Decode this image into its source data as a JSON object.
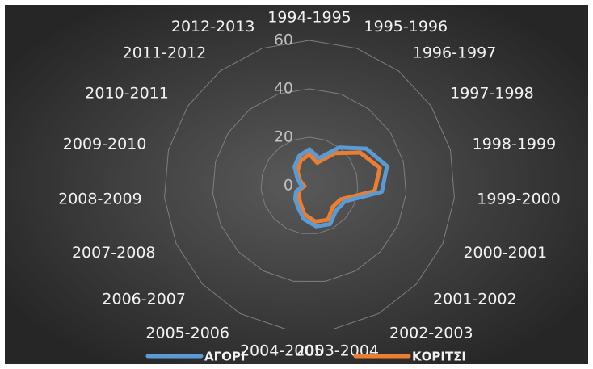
{
  "chart_data": {
    "type": "radar",
    "categories": [
      "1994-1995",
      "1995-1996",
      "1996-1997",
      "1997-1998",
      "1998-1999",
      "1999-2000",
      "2000-2001",
      "2001-2002",
      "2002-2003",
      "2003-2004",
      "2004-2005",
      "2005-2006",
      "2006-2007",
      "2007-2008",
      "2008-2009",
      "2009-2010",
      "2010-2011",
      "2011-2012",
      "2012-2013"
    ],
    "series": [
      {
        "name": "ΑΓΟΡΙ",
        "color": "#5b9bd5",
        "values": [
          15,
          12,
          20,
          28,
          33,
          30,
          16,
          15,
          18,
          17,
          14,
          10,
          8,
          6,
          3,
          4,
          6,
          10,
          13
        ]
      },
      {
        "name": "ΚΟΡΙΤΣΙ",
        "color": "#ed7d31",
        "values": [
          13,
          10,
          17,
          25,
          30,
          27,
          14,
          13,
          16,
          15,
          12,
          8,
          6,
          5,
          2,
          3,
          5,
          8,
          11
        ]
      }
    ],
    "ylim": [
      0,
      60
    ],
    "yticks": [
      0,
      20,
      40,
      60
    ],
    "grid": true,
    "legend": "bottom"
  }
}
